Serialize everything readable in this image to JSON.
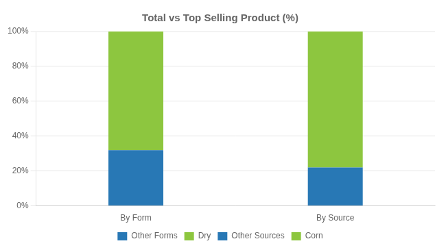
{
  "chart_data": {
    "type": "bar",
    "title": "Total vs Top Selling Product (%)",
    "categories": [
      "By Form",
      "By Source"
    ],
    "series": [
      {
        "name": "Other Forms",
        "color": "#2878b5",
        "values": [
          32,
          null
        ]
      },
      {
        "name": "Dry",
        "color": "#8dc63f",
        "values": [
          68,
          null
        ]
      },
      {
        "name": "Other Sources",
        "color": "#2878b5",
        "values": [
          null,
          22
        ]
      },
      {
        "name": "Corn",
        "color": "#8dc63f",
        "values": [
          null,
          78
        ]
      }
    ],
    "stacked": true,
    "ylim": [
      0,
      100
    ],
    "yticks": [
      {
        "value": 0,
        "label": "0%"
      },
      {
        "value": 20,
        "label": "20%"
      },
      {
        "value": 40,
        "label": "40%"
      },
      {
        "value": 60,
        "label": "60%"
      },
      {
        "value": 80,
        "label": "80%"
      },
      {
        "value": 100,
        "label": "100%"
      }
    ],
    "grid": true,
    "legend": "bottom"
  }
}
